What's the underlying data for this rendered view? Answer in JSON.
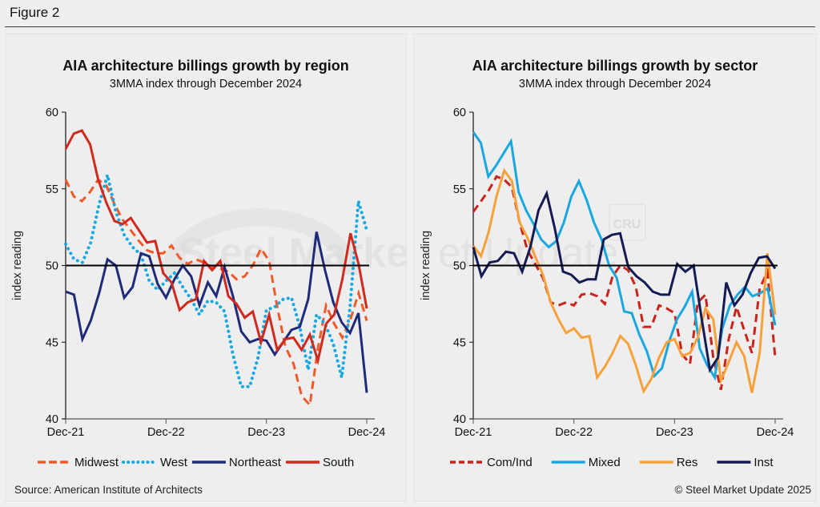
{
  "figure": {
    "label": "Figure 2",
    "source": "Source: American Institute of Architects",
    "copyright": "© Steel Market Update 2025",
    "watermark": "Steel Market Update",
    "watermark_badge": "CRU"
  },
  "chart_data": [
    {
      "type": "line",
      "title": "AIA architecture billings growth by region",
      "subtitle": "3MMA index through December 2024",
      "xlabel": "",
      "ylabel": "index reading",
      "ylim": [
        40,
        60
      ],
      "yticks": [
        40,
        45,
        50,
        55,
        60
      ],
      "xticks": [
        "Dec-21",
        "Dec-22",
        "Dec-23",
        "Dec-24"
      ],
      "x_range": [
        "Dec-21",
        "Dec-24"
      ],
      "frequency": "monthly",
      "reference_line": 50,
      "legend_position": "bottom",
      "series": [
        {
          "name": "Midwest",
          "style": "dashed",
          "color": "#f05a28",
          "values": [
            55.6,
            54.5,
            54.2,
            54.8,
            55.6,
            55.2,
            54.0,
            53.0,
            52.3,
            51.6,
            51.0,
            50.8,
            50.8,
            51.3,
            50.5,
            50.1,
            50.4,
            50.2,
            49.9,
            49.8,
            49.6,
            49.1,
            49.3,
            50.0,
            51.1,
            50.3,
            47.3,
            44.7,
            43.6,
            41.5,
            40.9,
            44.6,
            47.4,
            46.2,
            45.3,
            46.5,
            48.2,
            46.4
          ]
        },
        {
          "name": "West",
          "style": "dotted",
          "color": "#16a8e0",
          "values": [
            51.4,
            50.4,
            50.2,
            51.5,
            54.0,
            55.9,
            53.5,
            52.0,
            51.2,
            50.7,
            49.0,
            48.4,
            49.0,
            49.5,
            48.6,
            47.8,
            46.8,
            47.7,
            47.6,
            47.0,
            44.2,
            42.1,
            42.1,
            44.0,
            47.1,
            47.3,
            47.8,
            47.9,
            46.0,
            43.2,
            46.8,
            46.2,
            44.9,
            42.7,
            47.3,
            54.2,
            52.3
          ]
        },
        {
          "name": "Northeast",
          "style": "solid",
          "color": "#1f2a78",
          "values": [
            48.3,
            48.1,
            45.2,
            46.4,
            48.2,
            50.4,
            50.0,
            47.9,
            48.6,
            50.8,
            50.6,
            48.8,
            47.9,
            49.1,
            50.0,
            49.3,
            47.4,
            48.9,
            48.0,
            49.9,
            48.0,
            45.7,
            45.0,
            45.2,
            45.1,
            44.2,
            45.0,
            45.8,
            46.0,
            47.8,
            52.2,
            49.7,
            47.6,
            46.3,
            45.6,
            46.9,
            41.7
          ]
        },
        {
          "name": "South",
          "style": "solid",
          "color": "#d02a1e",
          "values": [
            57.6,
            58.6,
            58.8,
            57.9,
            55.6,
            54.1,
            52.9,
            52.7,
            53.1,
            52.3,
            51.5,
            51.6,
            49.5,
            48.9,
            47.1,
            47.6,
            47.8,
            50.3,
            49.7,
            50.3,
            48.0,
            47.5,
            46.6,
            47.0,
            45.0,
            46.8,
            44.5,
            45.2,
            45.3,
            44.5,
            45.5,
            43.8,
            46.2,
            46.8,
            49.1,
            52.1,
            50.1,
            47.2
          ]
        }
      ]
    },
    {
      "type": "line",
      "title": "AIA architecture billings growth by sector",
      "subtitle": "3MMA index through December 2024",
      "xlabel": "",
      "ylabel": "index reading",
      "ylim": [
        40,
        60
      ],
      "yticks": [
        40,
        45,
        50,
        55,
        60
      ],
      "xticks": [
        "Dec-21",
        "Dec-22",
        "Dec-23",
        "Dec-24"
      ],
      "x_range": [
        "Dec-21",
        "Dec-24"
      ],
      "frequency": "monthly",
      "reference_line": 50,
      "legend_position": "bottom",
      "series": [
        {
          "name": "Com/Ind",
          "style": "dashed",
          "color": "#c8241c",
          "values": [
            53.5,
            54.2,
            54.9,
            55.8,
            55.6,
            55.1,
            52.8,
            51.0,
            50.1,
            49.2,
            47.6,
            47.4,
            47.6,
            47.4,
            48.1,
            48.2,
            48.0,
            47.5,
            49.3,
            50.0,
            49.7,
            48.6,
            46.0,
            46.0,
            47.4,
            47.2,
            46.9,
            44.2,
            43.6,
            47.6,
            48.1,
            44.0,
            41.9,
            45.2,
            47.3,
            45.8,
            44.3,
            48.5,
            49.6,
            44.0
          ]
        },
        {
          "name": "Mixed",
          "style": "solid",
          "color": "#1aa7e0",
          "values": [
            58.7,
            58.0,
            55.8,
            56.5,
            57.3,
            58.1,
            54.8,
            53.6,
            52.7,
            51.7,
            51.2,
            51.6,
            52.8,
            54.5,
            55.5,
            54.3,
            52.8,
            51.7,
            50.0,
            49.2,
            47.0,
            46.9,
            45.5,
            44.4,
            42.8,
            43.3,
            45.1,
            46.5,
            47.3,
            48.3,
            44.6,
            43.5,
            42.7,
            45.9,
            47.4,
            48.1,
            48.6,
            48.0,
            48.2,
            48.5,
            46.1
          ]
        },
        {
          "name": "Res",
          "style": "solid",
          "color": "#f7a13a",
          "values": [
            51.3,
            50.6,
            52.2,
            54.5,
            56.2,
            55.5,
            52.8,
            51.8,
            50.6,
            49.4,
            47.6,
            46.5,
            45.6,
            45.9,
            45.3,
            45.4,
            42.7,
            43.4,
            44.3,
            45.4,
            44.9,
            43.5,
            41.8,
            42.6,
            44.0,
            45.0,
            45.2,
            44.1,
            44.3,
            45.3,
            47.2,
            46.5,
            42.5,
            43.7,
            45.0,
            44.1,
            41.7,
            44.3,
            50.8,
            46.8
          ]
        },
        {
          "name": "Inst",
          "style": "solid",
          "color": "#141a52",
          "values": [
            51.2,
            49.3,
            50.2,
            50.3,
            50.9,
            50.8,
            49.6,
            51.2,
            53.6,
            54.7,
            52.4,
            49.6,
            49.4,
            48.9,
            49.1,
            49.1,
            51.7,
            52.0,
            52.1,
            49.9,
            49.3,
            48.9,
            48.3,
            48.1,
            48.1,
            50.1,
            49.6,
            50.0,
            46.5,
            43.2,
            44.0,
            48.9,
            47.4,
            48.1,
            49.5,
            50.5,
            50.6,
            49.8
          ]
        }
      ]
    }
  ]
}
